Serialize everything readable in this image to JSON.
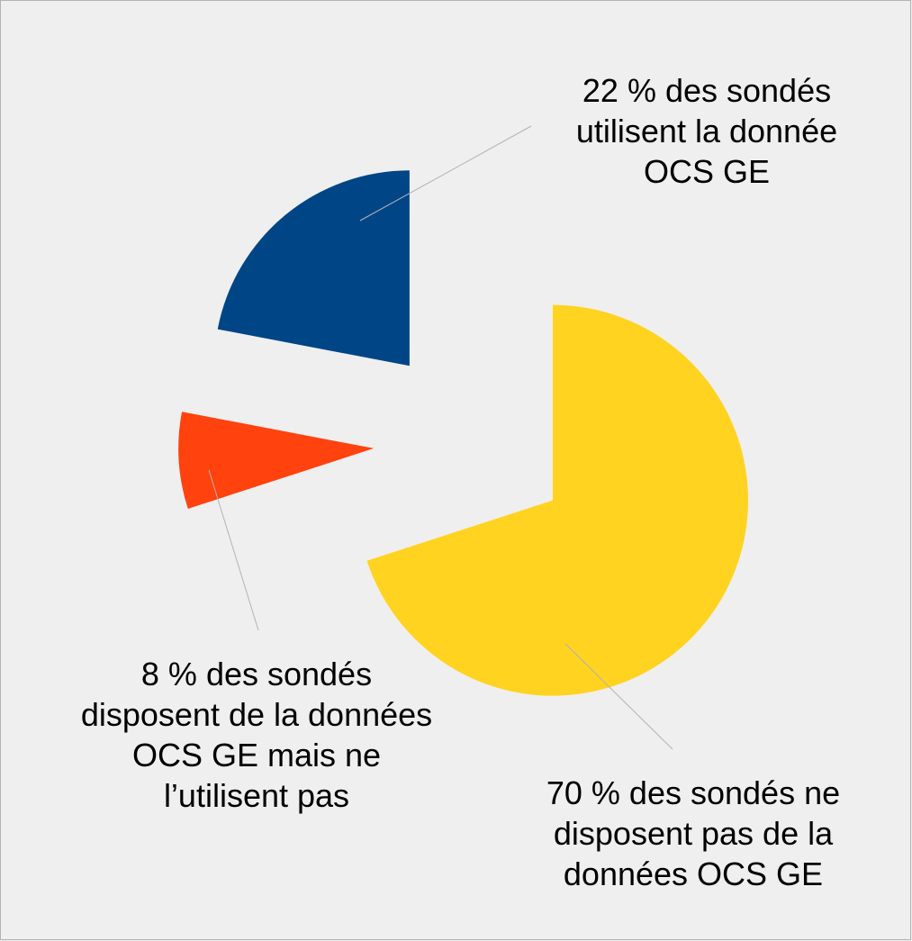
{
  "chart_data": {
    "type": "pie",
    "categories": [
      "70 % des sondés ne disposent pas de la données OCS GE",
      "8 % des sondés disposent de la données OCS GE mais ne l’utilisent pas",
      "22 % des sondés utilisent la donnée OCS GE"
    ],
    "values": [
      70,
      8,
      22
    ],
    "colors": [
      "#ffd320",
      "#ff420e",
      "#004586"
    ]
  }
}
